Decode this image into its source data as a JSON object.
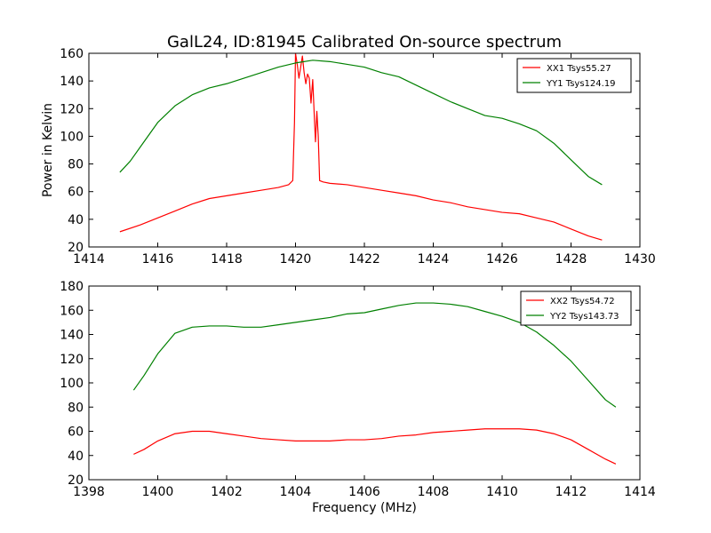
{
  "chart_data": [
    {
      "type": "line",
      "title": "GalL24, ID:81945 Calibrated On-source spectrum",
      "xlabel": "",
      "ylabel": "Power in Kelvin",
      "xlim": [
        1414,
        1430
      ],
      "ylim": [
        20,
        160
      ],
      "xticks": [
        1414,
        1416,
        1418,
        1420,
        1422,
        1424,
        1426,
        1428,
        1430
      ],
      "yticks": [
        20,
        40,
        60,
        80,
        100,
        120,
        140,
        160
      ],
      "legend_position": "top-right",
      "series": [
        {
          "name": "XX1 Tsys55.27",
          "color": "#ff0000",
          "points": [
            [
              1414.9,
              31
            ],
            [
              1415.5,
              36
            ],
            [
              1416.0,
              41
            ],
            [
              1416.5,
              46
            ],
            [
              1417.0,
              51
            ],
            [
              1417.5,
              55
            ],
            [
              1418.0,
              57
            ],
            [
              1418.5,
              59
            ],
            [
              1419.0,
              61
            ],
            [
              1419.5,
              63
            ],
            [
              1419.8,
              65
            ],
            [
              1419.92,
              68
            ],
            [
              1419.97,
              110
            ],
            [
              1420.0,
              160
            ],
            [
              1420.05,
              152
            ],
            [
              1420.1,
              142
            ],
            [
              1420.15,
              150
            ],
            [
              1420.2,
              158
            ],
            [
              1420.25,
              146
            ],
            [
              1420.3,
              138
            ],
            [
              1420.35,
              145
            ],
            [
              1420.4,
              142
            ],
            [
              1420.45,
              124
            ],
            [
              1420.5,
              141
            ],
            [
              1420.55,
              112
            ],
            [
              1420.58,
              96
            ],
            [
              1420.62,
              118
            ],
            [
              1420.66,
              100
            ],
            [
              1420.7,
              68
            ],
            [
              1420.8,
              67
            ],
            [
              1421.0,
              66
            ],
            [
              1421.5,
              65
            ],
            [
              1422.0,
              63
            ],
            [
              1422.5,
              61
            ],
            [
              1423.0,
              59
            ],
            [
              1423.5,
              57
            ],
            [
              1424.0,
              54
            ],
            [
              1424.5,
              52
            ],
            [
              1425.0,
              49
            ],
            [
              1425.5,
              47
            ],
            [
              1426.0,
              45
            ],
            [
              1426.5,
              44
            ],
            [
              1427.0,
              41
            ],
            [
              1427.5,
              38
            ],
            [
              1428.0,
              33
            ],
            [
              1428.5,
              28
            ],
            [
              1428.9,
              25
            ]
          ]
        },
        {
          "name": "YY1 Tsys124.19",
          "color": "#008000",
          "points": [
            [
              1414.9,
              74
            ],
            [
              1415.2,
              82
            ],
            [
              1415.6,
              96
            ],
            [
              1416.0,
              110
            ],
            [
              1416.5,
              122
            ],
            [
              1417.0,
              130
            ],
            [
              1417.5,
              135
            ],
            [
              1418.0,
              138
            ],
            [
              1418.5,
              142
            ],
            [
              1419.0,
              146
            ],
            [
              1419.5,
              150
            ],
            [
              1420.0,
              153
            ],
            [
              1420.5,
              155
            ],
            [
              1421.0,
              154
            ],
            [
              1421.5,
              152
            ],
            [
              1422.0,
              150
            ],
            [
              1422.5,
              146
            ],
            [
              1423.0,
              143
            ],
            [
              1423.5,
              137
            ],
            [
              1424.0,
              131
            ],
            [
              1424.5,
              125
            ],
            [
              1425.0,
              120
            ],
            [
              1425.5,
              115
            ],
            [
              1426.0,
              113
            ],
            [
              1426.5,
              109
            ],
            [
              1427.0,
              104
            ],
            [
              1427.5,
              95
            ],
            [
              1428.0,
              83
            ],
            [
              1428.5,
              71
            ],
            [
              1428.9,
              65
            ]
          ]
        }
      ]
    },
    {
      "type": "line",
      "title": "",
      "xlabel": "Frequency (MHz)",
      "ylabel": "",
      "xlim": [
        1398,
        1414
      ],
      "ylim": [
        20,
        180
      ],
      "xticks": [
        1398,
        1400,
        1402,
        1404,
        1406,
        1408,
        1410,
        1412,
        1414
      ],
      "yticks": [
        20,
        40,
        60,
        80,
        100,
        120,
        140,
        160,
        180
      ],
      "legend_position": "top-right",
      "series": [
        {
          "name": "XX2 Tsys54.72",
          "color": "#ff0000",
          "points": [
            [
              1399.3,
              41
            ],
            [
              1399.6,
              45
            ],
            [
              1400.0,
              52
            ],
            [
              1400.5,
              58
            ],
            [
              1401.0,
              60
            ],
            [
              1401.5,
              60
            ],
            [
              1402.0,
              58
            ],
            [
              1402.5,
              56
            ],
            [
              1403.0,
              54
            ],
            [
              1403.5,
              53
            ],
            [
              1404.0,
              52
            ],
            [
              1404.5,
              52
            ],
            [
              1405.0,
              52
            ],
            [
              1405.5,
              53
            ],
            [
              1406.0,
              53
            ],
            [
              1406.5,
              54
            ],
            [
              1407.0,
              56
            ],
            [
              1407.5,
              57
            ],
            [
              1408.0,
              59
            ],
            [
              1408.5,
              60
            ],
            [
              1409.0,
              61
            ],
            [
              1409.5,
              62
            ],
            [
              1410.0,
              62
            ],
            [
              1410.5,
              62
            ],
            [
              1411.0,
              61
            ],
            [
              1411.5,
              58
            ],
            [
              1412.0,
              53
            ],
            [
              1412.5,
              45
            ],
            [
              1413.0,
              37
            ],
            [
              1413.3,
              33
            ]
          ]
        },
        {
          "name": "YY2 Tsys143.73",
          "color": "#008000",
          "points": [
            [
              1399.3,
              94
            ],
            [
              1399.6,
              106
            ],
            [
              1400.0,
              124
            ],
            [
              1400.5,
              141
            ],
            [
              1401.0,
              146
            ],
            [
              1401.5,
              147
            ],
            [
              1402.0,
              147
            ],
            [
              1402.5,
              146
            ],
            [
              1403.0,
              146
            ],
            [
              1403.5,
              148
            ],
            [
              1404.0,
              150
            ],
            [
              1404.5,
              152
            ],
            [
              1405.0,
              154
            ],
            [
              1405.5,
              157
            ],
            [
              1406.0,
              158
            ],
            [
              1406.5,
              161
            ],
            [
              1407.0,
              164
            ],
            [
              1407.5,
              166
            ],
            [
              1408.0,
              166
            ],
            [
              1408.5,
              165
            ],
            [
              1409.0,
              163
            ],
            [
              1409.5,
              159
            ],
            [
              1410.0,
              155
            ],
            [
              1410.5,
              150
            ],
            [
              1411.0,
              142
            ],
            [
              1411.5,
              131
            ],
            [
              1412.0,
              118
            ],
            [
              1412.5,
              102
            ],
            [
              1413.0,
              86
            ],
            [
              1413.3,
              80
            ]
          ]
        }
      ]
    }
  ]
}
